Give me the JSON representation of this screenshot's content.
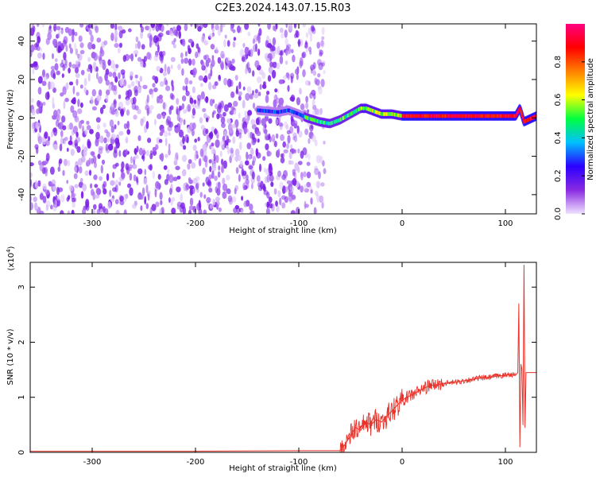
{
  "figure": {
    "title": "C2E3.2024.143.07.15.R03"
  },
  "chart_data": [
    {
      "type": "heatmap",
      "xlabel": "Height of straight line (km)",
      "ylabel": "Frequency (Hz)",
      "xlim": [
        -360,
        130
      ],
      "ylim": [
        -50,
        49
      ],
      "xticks": [
        -300,
        -200,
        -100,
        0,
        100
      ],
      "yticks": [
        -40,
        -20,
        0,
        20,
        40
      ],
      "xtick_labels": [
        "-300",
        "-200",
        "-100",
        "0",
        "100"
      ],
      "ytick_labels": [
        "-40",
        "-20",
        "0",
        "20",
        "40"
      ],
      "colorbar": {
        "label": "Normalized spectral amplitude",
        "range": [
          0,
          1
        ],
        "ticks": [
          0,
          0.2,
          0.4,
          0.6,
          0.8
        ],
        "tick_labels": [
          "0.0",
          "0.2",
          "0.4",
          "0.6",
          "0.8"
        ],
        "colormap_stops": [
          "#f0e2ff",
          "#8a2be2",
          "#2b00ff",
          "#00bfff",
          "#00ff40",
          "#ffff00",
          "#ff8000",
          "#ff0000",
          "#ff0080"
        ]
      },
      "noise_region_x": [
        -360,
        -75
      ],
      "ridge_points": {
        "x": [
          -140,
          -120,
          -110,
          -100,
          -92,
          -80,
          -70,
          -60,
          -50,
          -40,
          -35,
          -30,
          -20,
          -10,
          0,
          20,
          40,
          60,
          80,
          90,
          100,
          110,
          114,
          118,
          130
        ],
        "y": [
          4,
          3,
          4,
          2,
          0,
          -2,
          -3,
          -1,
          2,
          5,
          5,
          4,
          2,
          2,
          1,
          1,
          1,
          1,
          1,
          1,
          1,
          1,
          5,
          -2,
          1
        ]
      }
    },
    {
      "type": "line",
      "xlabel": "Height of straight line (km)",
      "ylabel": "SNR (10 * v/v)",
      "y_multiplier_label": "(x10",
      "y_multiplier_exp": "4",
      "xlim": [
        -360,
        130
      ],
      "ylim": [
        0,
        3.45
      ],
      "xticks": [
        -300,
        -200,
        -100,
        0,
        100
      ],
      "yticks": [
        0,
        1,
        2,
        3
      ],
      "xtick_labels": [
        "-300",
        "-200",
        "-100",
        "0",
        "100"
      ],
      "ytick_labels": [
        "0",
        "1",
        "2",
        "3"
      ],
      "series": [
        {
          "color": "#e8322a",
          "x": [
            -360,
            -300,
            -200,
            -100,
            -60,
            -55,
            -50,
            -45,
            -40,
            -35,
            -30,
            -25,
            -20,
            -15,
            -10,
            -5,
            0,
            5,
            10,
            15,
            20,
            25,
            30,
            35,
            40,
            45,
            50,
            55,
            60,
            65,
            70,
            75,
            80,
            85,
            90,
            95,
            100,
            105,
            110,
            112,
            113,
            114,
            115,
            116,
            117,
            118,
            119,
            120,
            125,
            130
          ],
          "y": [
            0.02,
            0.02,
            0.02,
            0.03,
            0.03,
            0.15,
            0.3,
            0.45,
            0.4,
            0.55,
            0.5,
            0.6,
            0.55,
            0.65,
            0.75,
            0.85,
            0.95,
            1.0,
            1.05,
            1.1,
            1.15,
            1.2,
            1.22,
            1.23,
            1.25,
            1.26,
            1.27,
            1.28,
            1.3,
            1.32,
            1.33,
            1.35,
            1.35,
            1.36,
            1.38,
            1.39,
            1.4,
            1.42,
            1.4,
            1.45,
            2.7,
            0.1,
            1.6,
            1.5,
            0.5,
            3.4,
            0.45,
            1.45,
            1.45,
            1.45
          ]
        }
      ]
    }
  ]
}
